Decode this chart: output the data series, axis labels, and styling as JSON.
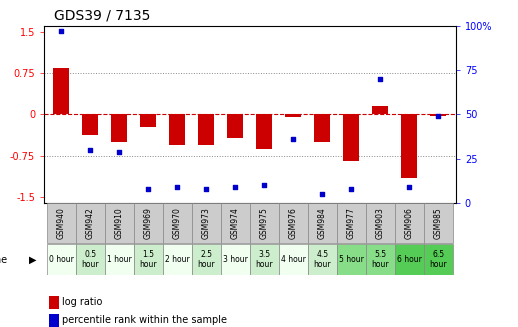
{
  "title": "GDS39 / 7135",
  "samples": [
    "GSM940",
    "GSM942",
    "GSM910",
    "GSM969",
    "GSM970",
    "GSM973",
    "GSM974",
    "GSM975",
    "GSM976",
    "GSM984",
    "GSM977",
    "GSM903",
    "GSM906",
    "GSM985"
  ],
  "time_labels": [
    "0 hour",
    "0.5\nhour",
    "1 hour",
    "1.5\nhour",
    "2 hour",
    "2.5\nhour",
    "3 hour",
    "3.5\nhour",
    "4 hour",
    "4.5\nhour",
    "5 hour",
    "5.5\nhour",
    "6 hour",
    "6.5\nhour"
  ],
  "time_colors": [
    "#f0fff0",
    "#cceecc",
    "#f0fff0",
    "#cceecc",
    "#f0fff0",
    "#cceecc",
    "#f0fff0",
    "#cceecc",
    "#f0fff0",
    "#cceecc",
    "#88dd88",
    "#88dd88",
    "#55cc55",
    "#55cc55"
  ],
  "log_ratio": [
    0.85,
    -0.38,
    -0.5,
    -0.22,
    -0.55,
    -0.55,
    -0.42,
    -0.62,
    -0.05,
    -0.5,
    -0.85,
    0.15,
    -1.15,
    -0.02
  ],
  "percentile": [
    97,
    30,
    29,
    8,
    9,
    8,
    9,
    10,
    36,
    5,
    8,
    70,
    9,
    49
  ],
  "ylim_left": [
    -1.6,
    1.6
  ],
  "ylim_right": [
    0,
    100
  ],
  "yticks_left": [
    -1.5,
    -0.75,
    0,
    0.75,
    1.5
  ],
  "yticks_right": [
    0,
    25,
    50,
    75,
    100
  ],
  "hlines_dotted": [
    -0.75,
    0.75
  ],
  "hline_zero": 0,
  "bar_color": "#cc0000",
  "dot_color": "#0000cc",
  "bg_color": "#ffffff",
  "grid_color": "#888888",
  "zero_line_color": "#cc0000",
  "title_fontsize": 10,
  "tick_fontsize": 7,
  "legend_fontsize": 7,
  "sample_box_color": "#cccccc",
  "sample_text_fontsize": 5.5,
  "time_text_fontsize": 5.5
}
